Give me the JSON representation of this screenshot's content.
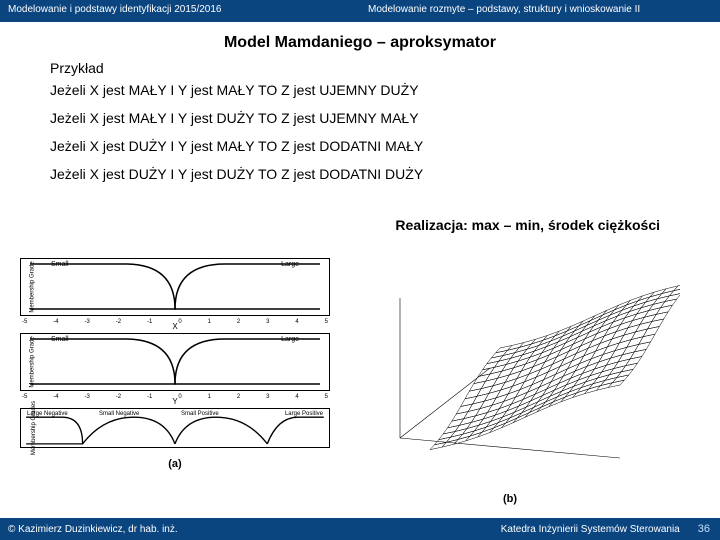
{
  "header": {
    "left": "Modelowanie i podstawy identyfikacji 2015/2016",
    "right": "Modelowanie rozmyte – podstawy, struktury i wnioskowanie II"
  },
  "title": "Model Mamdaniego – aproksymator",
  "przyklad": "Przykład",
  "rules": [
    "Jeżeli X jest MAŁY I  Y jest MAŁY TO Z  jest UJEMNY DUŻY",
    "Jeżeli X jest MAŁY I Y jest DUŻY TO Z  jest UJEMNY MAŁY",
    "Jeżeli X jest DUŻY I Y jest MAŁY TO Z  jest DODATNI MAŁY",
    "Jeżeli X jest DUŻY I Y jest DUŻY TO Z  jest DODATNI DUŻY"
  ],
  "realizacja": "Realizacja: max – min, środek ciężkości",
  "mf_x": {
    "left_label": "Small",
    "right_label": "Large",
    "ylabel": "Membership Grade",
    "xlabel": "X",
    "xticks": [
      "-5",
      "-4",
      "-3",
      "-2",
      "-1",
      "0",
      "1",
      "2",
      "3",
      "4",
      "5"
    ]
  },
  "mf_y": {
    "left_label": "Small",
    "right_label": "Large",
    "ylabel": "Membership Grade",
    "xlabel": "Y",
    "xticks": [
      "-5",
      "-4",
      "-3",
      "-2",
      "-1",
      "0",
      "1",
      "2",
      "3",
      "4",
      "5"
    ]
  },
  "mf_z": {
    "labels": [
      "Large Negative",
      "Small Negative",
      "Small Positive",
      "Large Positive"
    ],
    "ylabel": "Membership Grades"
  },
  "captions": {
    "a": "(a)",
    "b": "(b)"
  },
  "footer": {
    "left": "© Kazimierz Duzinkiewicz, dr hab. inż.",
    "right": "Katedra Inżynierii Systemów Sterowania",
    "page": "36"
  },
  "colors": {
    "header_bg": "#0a4580",
    "text": "#000000",
    "line": "#000000"
  }
}
